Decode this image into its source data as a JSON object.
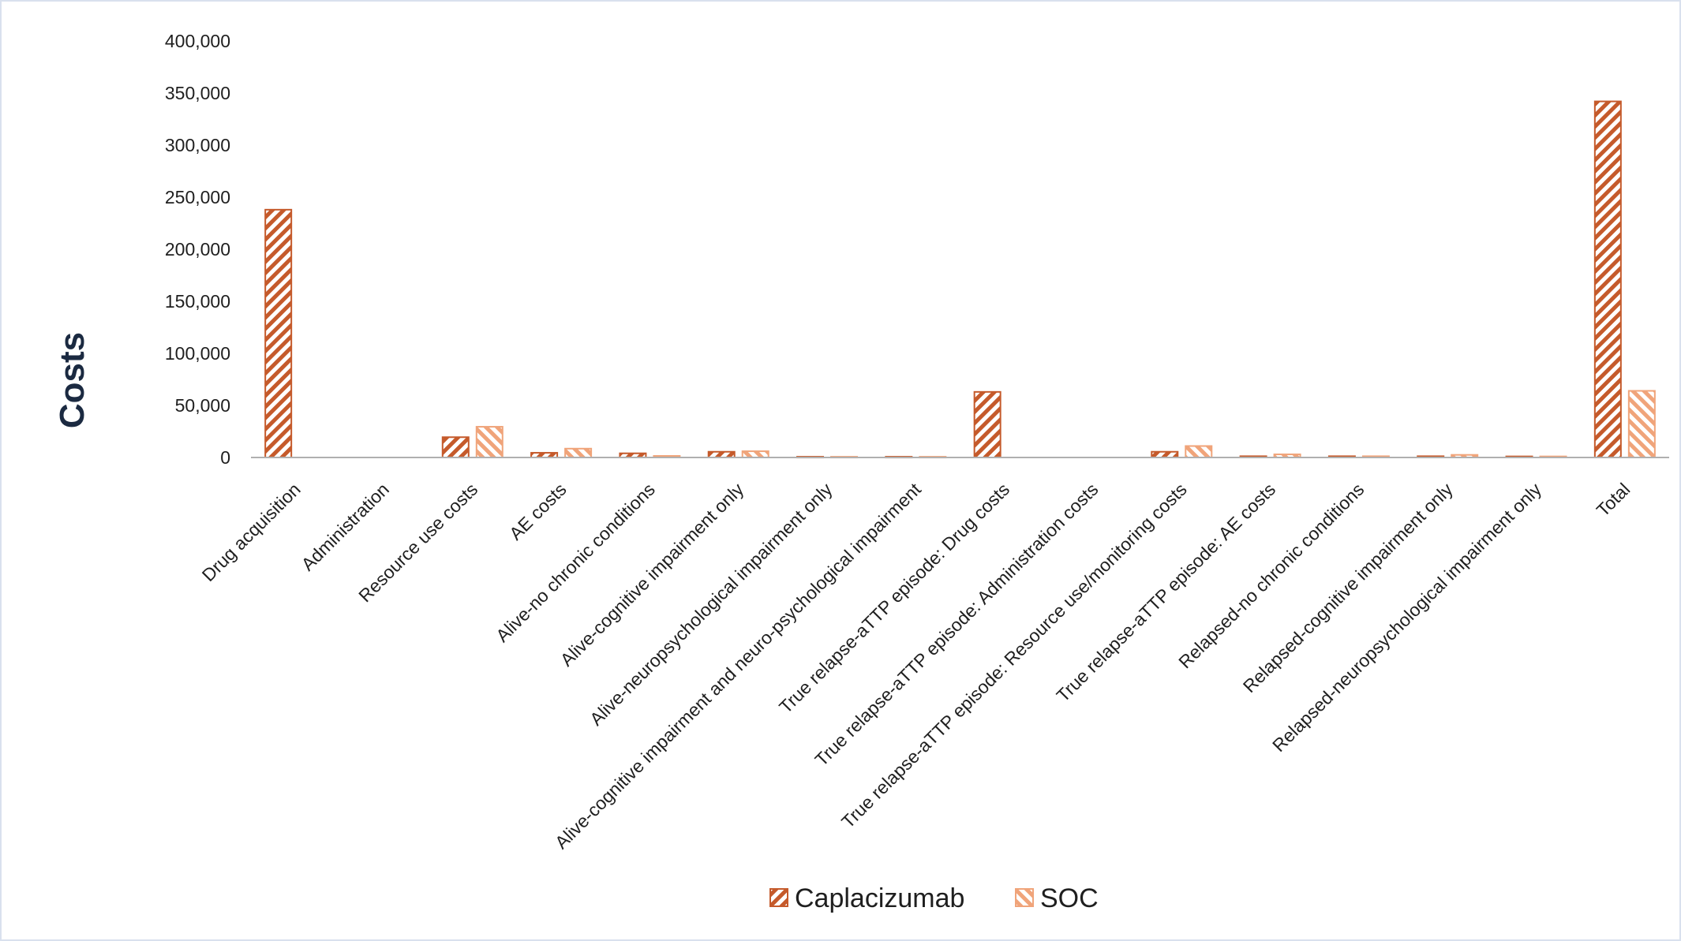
{
  "chart_data": {
    "type": "bar",
    "ylabel": "Costs",
    "xlabel": "",
    "ylim": [
      0,
      400000
    ],
    "yticks": [
      0,
      50000,
      100000,
      150000,
      200000,
      250000,
      300000,
      350000,
      400000
    ],
    "ytick_labels": [
      "0",
      "50,000",
      "100,000",
      "150,000",
      "200,000",
      "250,000",
      "300,000",
      "350,000",
      "400,000"
    ],
    "grid": false,
    "legend_position": "bottom",
    "categories": [
      "Drug acquisition",
      "Administration",
      "Resource use costs",
      "AE costs",
      "Alive-no chronic conditions",
      "Alive-cognitive impairment only",
      "Alive-neuropsychological impairment only",
      "Alive-cognitive impairment and neuro-psychological impairment",
      "True relapse-aTTP episode: Drug costs",
      "True relapse-aTTP episode: Administration costs",
      "True relapse-aTTP episode: Resource use/monitoring costs",
      "True relapse-aTTP episode: AE costs",
      "Relapsed-no chronic conditions",
      "Relapsed-cognitive impairment only",
      "Relapsed-neuropsychological impairment only",
      "Total"
    ],
    "series": [
      {
        "name": "Caplacizumab",
        "color": "#c55a2b",
        "pattern": "dense-diagonal-hatch",
        "values": [
          238000,
          0,
          19500,
          4500,
          4000,
          5500,
          700,
          700,
          63000,
          0,
          5500,
          1200,
          1200,
          1200,
          1000,
          342000
        ]
      },
      {
        "name": "SOC",
        "color": "#f0a47a",
        "pattern": "light-diagonal-hatch",
        "values": [
          0,
          0,
          29500,
          8500,
          1500,
          6000,
          700,
          700,
          0,
          0,
          11000,
          3000,
          1200,
          2500,
          1000,
          64000
        ]
      }
    ]
  }
}
